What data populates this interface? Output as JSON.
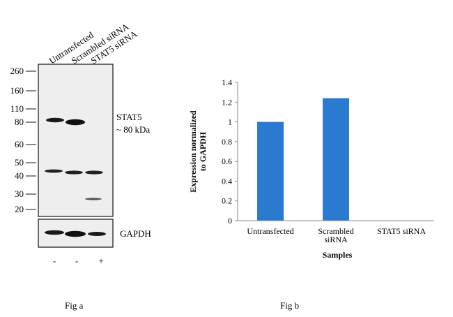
{
  "fig_a": {
    "caption": "Fig a",
    "lane_labels": [
      "Untransfected",
      "Scrambled siRNA",
      "STAT5 siRNA"
    ],
    "mw_markers": [
      "260",
      "160",
      "110",
      "80",
      "60",
      "50",
      "40",
      "30",
      "20"
    ],
    "band_label_line1": "STAT5",
    "band_label_line2": "~ 80 kDa",
    "loading_control_label": "GAPDH",
    "treatment_signs": [
      "-",
      "-",
      "+"
    ]
  },
  "fig_b": {
    "caption": "Fig b"
  },
  "colors": {
    "bar": "#2a7ad0",
    "blot_bg": "#eeeeee",
    "band": "#1a1a1a"
  },
  "chart_data": {
    "type": "bar",
    "categories": [
      "Untransfected",
      "Scrambled siRNA",
      "STAT5 siRNA"
    ],
    "values": [
      1.0,
      1.24,
      0
    ],
    "title": "",
    "xlabel": "Samples",
    "ylabel": "Expression normalized to GAPDH",
    "ylabel_lines": [
      "Expression normalized",
      "to GAPDH"
    ],
    "ylim": [
      0,
      1.4
    ],
    "yticks": [
      "0",
      "0.2",
      "0.4",
      "0.6",
      "0.8",
      "1",
      "1.2",
      "1.4"
    ],
    "category_label_lines": [
      [
        "Untransfected"
      ],
      [
        "Scrambled",
        "siRNA"
      ],
      [
        "STAT5 siRNA"
      ]
    ],
    "grid": false,
    "legend": "none"
  }
}
